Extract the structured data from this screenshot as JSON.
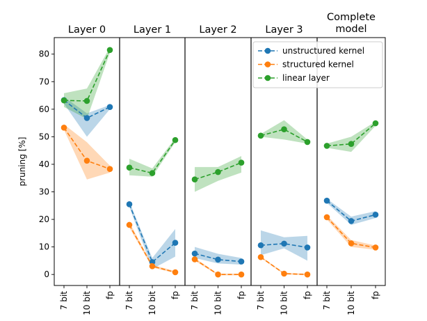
{
  "chart_data": {
    "type": "line",
    "ylabel": "pruning [%]",
    "ylim": [
      -4,
      86
    ],
    "yticks": [
      0,
      10,
      20,
      30,
      40,
      50,
      60,
      70,
      80
    ],
    "categories": [
      "7 bit",
      "10 bit",
      "fp"
    ],
    "legend": {
      "placement": "upper right (inside Layer 3 panel)",
      "entries": [
        "unstructured kernel",
        "structured kernel",
        "linear layer"
      ]
    },
    "colors": {
      "unstructured kernel": "#1f77b4",
      "structured kernel": "#ff7f0e",
      "linear layer": "#2ca02c"
    },
    "panels": [
      {
        "title": [
          "Layer 0"
        ],
        "series": [
          {
            "name": "unstructured kernel",
            "values": [
              63.3,
              56.8,
              60.8
            ],
            "band_low": [
              62.0,
              50.0,
              60.0
            ],
            "band_high": [
              64.5,
              58.5,
              61.5
            ]
          },
          {
            "name": "structured kernel",
            "values": [
              53.3,
              41.3,
              38.3
            ],
            "band_low": [
              52.5,
              34.5,
              37.0
            ],
            "band_high": [
              54.5,
              48.0,
              39.5
            ]
          },
          {
            "name": "linear layer",
            "values": [
              63.2,
              63.0,
              81.5
            ],
            "band_low": [
              60.8,
              56.5,
              80.5
            ],
            "band_high": [
              65.8,
              67.5,
              82.5
            ]
          }
        ]
      },
      {
        "title": [
          "Layer 1"
        ],
        "series": [
          {
            "name": "unstructured kernel",
            "values": [
              25.5,
              4.5,
              11.5
            ],
            "band_low": [
              24.5,
              2.0,
              6.5
            ],
            "band_high": [
              26.5,
              6.0,
              16.5
            ]
          },
          {
            "name": "structured kernel",
            "values": [
              18.0,
              3.0,
              0.8
            ],
            "band_low": [
              17.0,
              2.5,
              0.5
            ],
            "band_high": [
              19.0,
              3.5,
              1.2
            ]
          },
          {
            "name": "linear layer",
            "values": [
              38.8,
              36.8,
              48.8
            ],
            "band_low": [
              36.0,
              35.5,
              48.0
            ],
            "band_high": [
              42.0,
              38.5,
              49.5
            ]
          }
        ]
      },
      {
        "title": [
          "Layer 2"
        ],
        "series": [
          {
            "name": "unstructured kernel",
            "values": [
              7.6,
              5.4,
              4.7
            ],
            "band_low": [
              6.0,
              4.0,
              3.6
            ],
            "band_high": [
              10.0,
              7.5,
              6.0
            ]
          },
          {
            "name": "structured kernel",
            "values": [
              5.5,
              0.0,
              0.0
            ],
            "band_low": [
              5.0,
              -0.3,
              -0.3
            ],
            "band_high": [
              6.0,
              0.3,
              0.3
            ]
          },
          {
            "name": "linear layer",
            "values": [
              34.5,
              37.2,
              40.6
            ],
            "band_low": [
              30.0,
              34.0,
              37.0
            ],
            "band_high": [
              39.0,
              39.0,
              43.0
            ]
          }
        ]
      },
      {
        "title": [
          "Layer 3"
        ],
        "series": [
          {
            "name": "unstructured kernel",
            "values": [
              10.6,
              11.2,
              9.8
            ],
            "band_low": [
              7.0,
              9.5,
              5.0
            ],
            "band_high": [
              16.0,
              13.5,
              14.0
            ]
          },
          {
            "name": "structured kernel",
            "values": [
              6.3,
              0.3,
              0.0
            ],
            "band_low": [
              6.0,
              0.0,
              -0.3
            ],
            "band_high": [
              6.6,
              0.6,
              0.3
            ]
          },
          {
            "name": "linear layer",
            "values": [
              50.4,
              52.7,
              48.1
            ],
            "band_low": [
              50.0,
              49.0,
              47.5
            ],
            "band_high": [
              51.0,
              56.0,
              49.0
            ]
          }
        ]
      },
      {
        "title": [
          "Complete",
          "model"
        ],
        "series": [
          {
            "name": "unstructured kernel",
            "values": [
              26.8,
              19.4,
              21.7
            ],
            "band_low": [
              26.0,
              18.0,
              20.5
            ],
            "band_high": [
              27.5,
              21.0,
              23.0
            ]
          },
          {
            "name": "structured kernel",
            "values": [
              20.8,
              11.3,
              9.8
            ],
            "band_low": [
              20.0,
              10.0,
              9.0
            ],
            "band_high": [
              21.5,
              12.5,
              10.5
            ]
          },
          {
            "name": "linear layer",
            "values": [
              46.7,
              47.4,
              54.9
            ],
            "band_low": [
              46.0,
              44.5,
              54.0
            ],
            "band_high": [
              47.5,
              50.0,
              55.5
            ]
          }
        ]
      }
    ]
  }
}
